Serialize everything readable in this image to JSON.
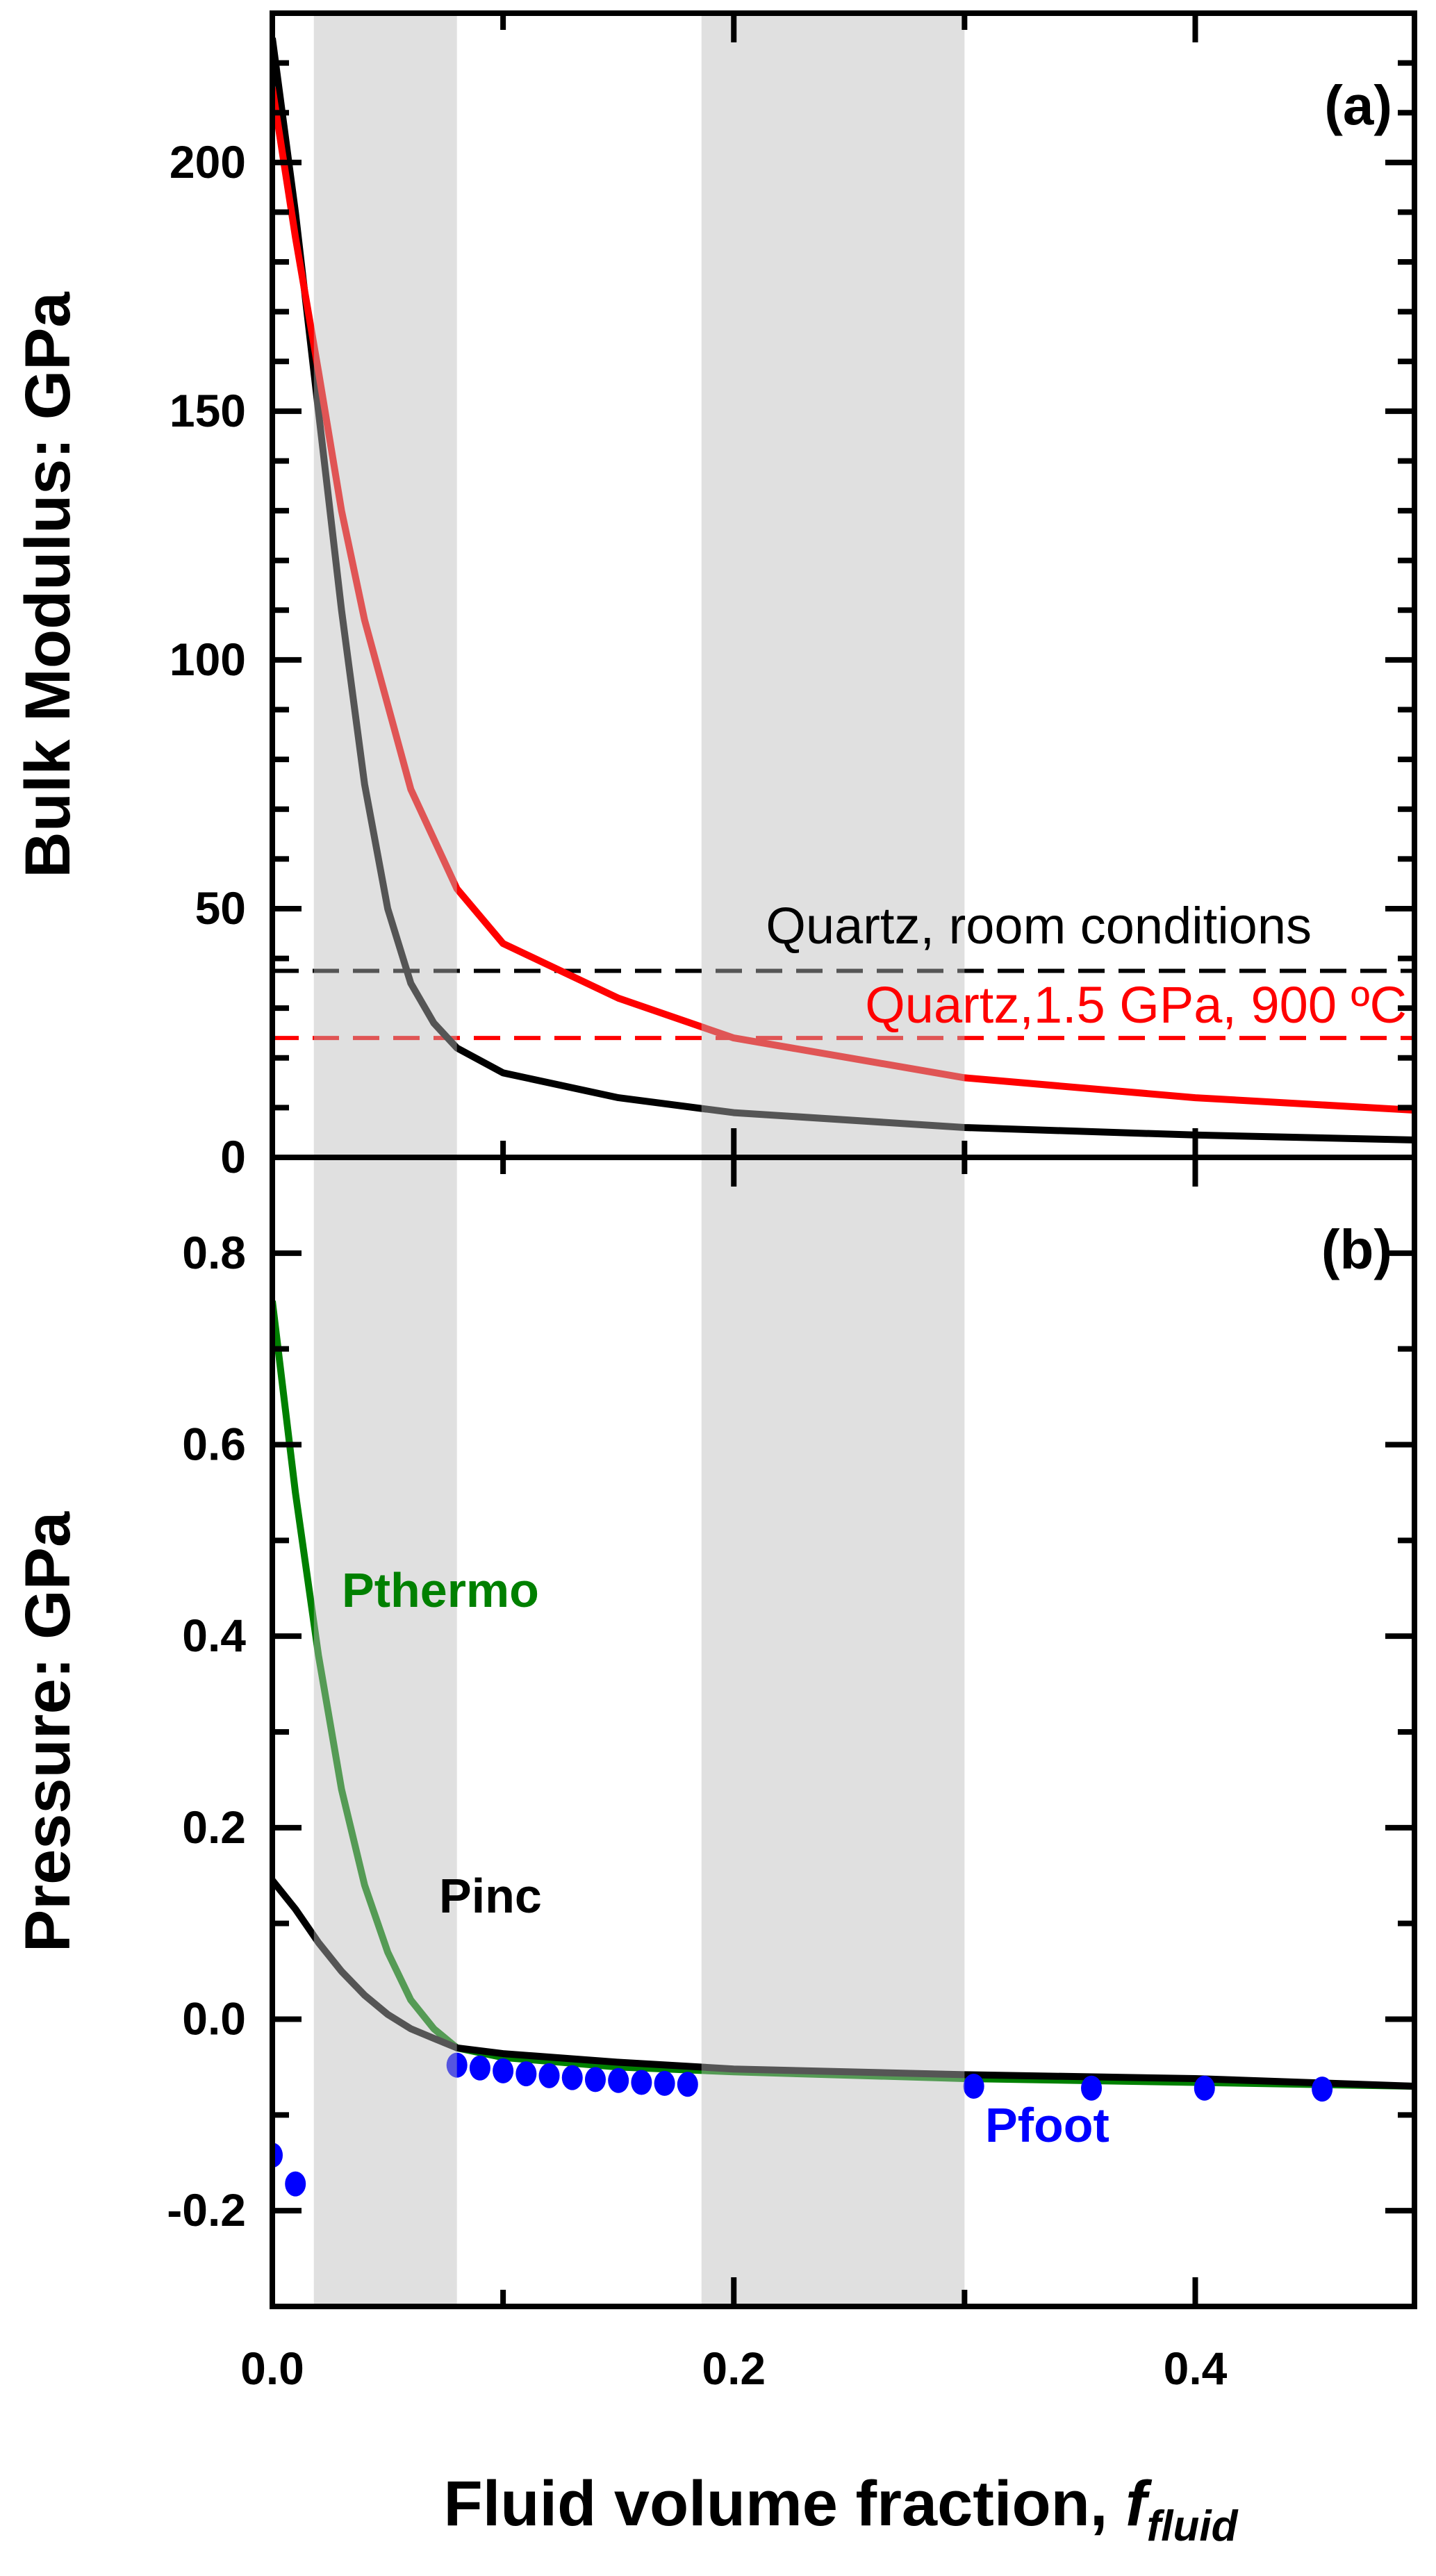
{
  "chart_data": [
    {
      "panel_label": "(a)",
      "type": "line",
      "ylabel": "Bulk Modulus: GPa",
      "xlim": [
        0,
        0.495
      ],
      "ylim": [
        0,
        230
      ],
      "yticks": [
        0,
        50,
        100,
        150,
        200
      ],
      "grid": false,
      "shaded_ranges": [
        [
          0.018,
          0.08
        ],
        [
          0.186,
          0.3
        ]
      ],
      "series": [
        {
          "color": "#000000",
          "x": [
            0,
            0.01,
            0.02,
            0.03,
            0.04,
            0.05,
            0.06,
            0.07,
            0.08,
            0.1,
            0.15,
            0.2,
            0.3,
            0.4,
            0.495
          ],
          "y": [
            225,
            190,
            150,
            110,
            75,
            50,
            35,
            27,
            22,
            17,
            12,
            9,
            6,
            4.5,
            3.5
          ]
        },
        {
          "color": "#ff0000",
          "x": [
            0,
            0.01,
            0.02,
            0.03,
            0.04,
            0.06,
            0.08,
            0.1,
            0.15,
            0.2,
            0.3,
            0.4,
            0.495
          ],
          "y": [
            215,
            185,
            158,
            130,
            108,
            74,
            54,
            43,
            32,
            24,
            16,
            12,
            9.5
          ]
        }
      ],
      "hlines": [
        {
          "label": "Quartz, room conditions",
          "y": 37.5,
          "color": "#000000"
        },
        {
          "label": "Quartz,1.5 GPa, 900 ºC",
          "y": 24,
          "color": "#ff0000"
        }
      ]
    },
    {
      "panel_label": "(b)",
      "type": "line",
      "ylabel": "Pressure: GPa",
      "xlabel": "Fluid volume fraction, ",
      "xlabel_italic": "f",
      "xlabel_sub": "fluid",
      "xlim": [
        0,
        0.495
      ],
      "ylim": [
        -0.3,
        0.9
      ],
      "yticks": [
        -0.2,
        0.0,
        0.2,
        0.4,
        0.6,
        0.8
      ],
      "ytick_labels": [
        "-0.2",
        "0.0",
        "0.2",
        "0.4",
        "0.6",
        "0.8"
      ],
      "xticks": [
        0.0,
        0.2,
        0.4
      ],
      "xtick_labels": [
        "0.0",
        "0.2",
        "0.4"
      ],
      "grid": false,
      "shaded_ranges": [
        [
          0.018,
          0.08
        ],
        [
          0.186,
          0.3
        ]
      ],
      "series": [
        {
          "name": "Pthermo",
          "color": "#008000",
          "x": [
            0,
            0.01,
            0.02,
            0.03,
            0.04,
            0.05,
            0.06,
            0.07,
            0.08,
            0.1,
            0.15,
            0.2,
            0.3,
            0.4,
            0.495
          ],
          "y": [
            0.75,
            0.55,
            0.38,
            0.24,
            0.14,
            0.07,
            0.02,
            -0.01,
            -0.03,
            -0.04,
            -0.05,
            -0.055,
            -0.062,
            -0.066,
            -0.07
          ]
        },
        {
          "name": "Pinc",
          "color": "#000000",
          "x": [
            0,
            0.01,
            0.02,
            0.03,
            0.04,
            0.05,
            0.06,
            0.07,
            0.08,
            0.1,
            0.15,
            0.2,
            0.3,
            0.4,
            0.495
          ],
          "y": [
            0.145,
            0.115,
            0.08,
            0.05,
            0.025,
            0.005,
            -0.01,
            -0.02,
            -0.03,
            -0.036,
            -0.045,
            -0.052,
            -0.058,
            -0.062,
            -0.07
          ]
        },
        {
          "name": "Pfoot",
          "color": "#0000ff",
          "type": "scatter",
          "x": [
            0.0,
            0.01,
            0.08,
            0.09,
            0.1,
            0.11,
            0.12,
            0.13,
            0.14,
            0.15,
            0.16,
            0.17,
            0.18,
            0.304,
            0.355,
            0.404,
            0.455
          ],
          "y": [
            -0.142,
            -0.172,
            -0.048,
            -0.051,
            -0.054,
            -0.057,
            -0.059,
            -0.061,
            -0.063,
            -0.064,
            -0.066,
            -0.067,
            -0.068,
            -0.07,
            -0.072,
            -0.072,
            -0.073
          ]
        }
      ]
    }
  ]
}
